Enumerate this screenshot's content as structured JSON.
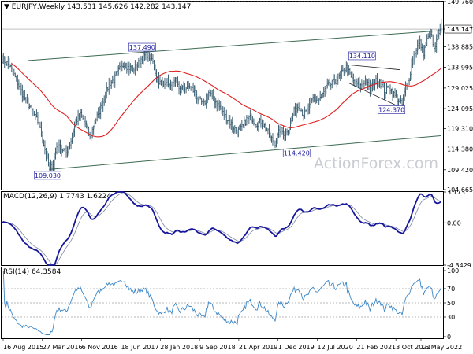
{
  "watermark": "ActionForex.com",
  "chart_data": [
    {
      "type": "candlestick",
      "title": "EURJPY,Weekly 143.531 145.626 142.282 143.147",
      "price_label": "143.147",
      "ylim": [
        104.665,
        149.76
      ],
      "yticks": [
        "149.760",
        "143.147",
        "138.885",
        "133.995",
        "129.025",
        "124.095",
        "119.310",
        "114.380",
        "109.420",
        "104.665"
      ],
      "xlabels": [
        "16 Aug 2015",
        "27 Mar 2016",
        "6 Nov 2016",
        "18 Jun 2017",
        "28 Jan 2018",
        "9 Sep 2018",
        "21 Apr 2019",
        "1 Dec 2019",
        "12 Jul 2020",
        "21 Feb 2021",
        "3 Oct 2021",
        "15 May 2022"
      ],
      "annotations": [
        {
          "label": "137.490",
          "value": 137.49,
          "date": "2017-12"
        },
        {
          "label": "134.110",
          "value": 134.11,
          "date": "2021-06"
        },
        {
          "label": "124.370",
          "value": 124.37,
          "date": "2021-12"
        },
        {
          "label": "114.420",
          "value": 114.42,
          "date": "2020-05"
        },
        {
          "label": "109.030",
          "value": 109.03,
          "date": "2016-06"
        }
      ],
      "price_path": [
        [
          0,
          136.0
        ],
        [
          6,
          134.5
        ],
        [
          12,
          131.0
        ],
        [
          18,
          127.0
        ],
        [
          24,
          124.0
        ],
        [
          30,
          121.0
        ],
        [
          34,
          117.0
        ],
        [
          37,
          113.0
        ],
        [
          40,
          109.5
        ],
        [
          43,
          111.0
        ],
        [
          46,
          115.0
        ],
        [
          50,
          114.5
        ],
        [
          54,
          113.5
        ],
        [
          58,
          116.5
        ],
        [
          62,
          121.0
        ],
        [
          66,
          122.5
        ],
        [
          70,
          120.5
        ],
        [
          74,
          117.0
        ],
        [
          78,
          121.0
        ],
        [
          82,
          123.5
        ],
        [
          86,
          126.5
        ],
        [
          90,
          130.0
        ],
        [
          94,
          131.0
        ],
        [
          98,
          133.0
        ],
        [
          102,
          135.0
        ],
        [
          106,
          134.0
        ],
        [
          110,
          133.5
        ],
        [
          114,
          134.5
        ],
        [
          118,
          136.5
        ],
        [
          122,
          137.0
        ],
        [
          126,
          136.0
        ],
        [
          130,
          132.0
        ],
        [
          134,
          129.5
        ],
        [
          138,
          131.0
        ],
        [
          142,
          129.0
        ],
        [
          146,
          130.5
        ],
        [
          150,
          128.5
        ],
        [
          154,
          129.0
        ],
        [
          158,
          129.5
        ],
        [
          162,
          128.0
        ],
        [
          166,
          126.0
        ],
        [
          170,
          125.0
        ],
        [
          174,
          128.0
        ],
        [
          178,
          126.5
        ],
        [
          182,
          125.0
        ],
        [
          186,
          123.0
        ],
        [
          190,
          121.5
        ],
        [
          194,
          120.0
        ],
        [
          198,
          118.5
        ],
        [
          202,
          119.5
        ],
        [
          206,
          121.5
        ],
        [
          210,
          122.0
        ],
        [
          214,
          120.5
        ],
        [
          218,
          121.0
        ],
        [
          222,
          119.5
        ],
        [
          226,
          117.0
        ],
        [
          230,
          116.0
        ],
        [
          234,
          119.0
        ],
        [
          238,
          118.0
        ],
        [
          242,
          120.0
        ],
        [
          246,
          123.5
        ],
        [
          250,
          125.0
        ],
        [
          254,
          122.5
        ],
        [
          258,
          124.0
        ],
        [
          262,
          126.5
        ],
        [
          266,
          126.0
        ],
        [
          270,
          127.5
        ],
        [
          274,
          129.5
        ],
        [
          278,
          130.0
        ],
        [
          282,
          131.0
        ],
        [
          286,
          132.5
        ],
        [
          290,
          134.0
        ],
        [
          294,
          131.5
        ],
        [
          298,
          130.0
        ],
        [
          302,
          129.5
        ],
        [
          306,
          131.0
        ],
        [
          310,
          128.5
        ],
        [
          314,
          130.5
        ],
        [
          318,
          131.0
        ],
        [
          322,
          128.0
        ],
        [
          326,
          129.5
        ],
        [
          330,
          127.5
        ],
        [
          334,
          126.0
        ],
        [
          337,
          125.0
        ],
        [
          340,
          129.0
        ],
        [
          343,
          131.5
        ],
        [
          346,
          136.0
        ],
        [
          349,
          138.5
        ],
        [
          352,
          140.0
        ],
        [
          355,
          137.5
        ],
        [
          358,
          140.5
        ],
        [
          361,
          142.5
        ],
        [
          364,
          138.0
        ],
        [
          367,
          141.0
        ],
        [
          370,
          143.147
        ]
      ]
    },
    {
      "type": "line",
      "title": "MACD(12,26,9) 1.7743 1.6224",
      "ylim": [
        -4.3429,
        3.173
      ],
      "yticks": [
        "3.173",
        "0.00",
        "-4.3429"
      ]
    },
    {
      "type": "line",
      "title": "RSI(14) 64.3584",
      "ylim": [
        0,
        100
      ],
      "yticks": [
        "100",
        "70",
        "50",
        "30",
        "0"
      ]
    }
  ]
}
